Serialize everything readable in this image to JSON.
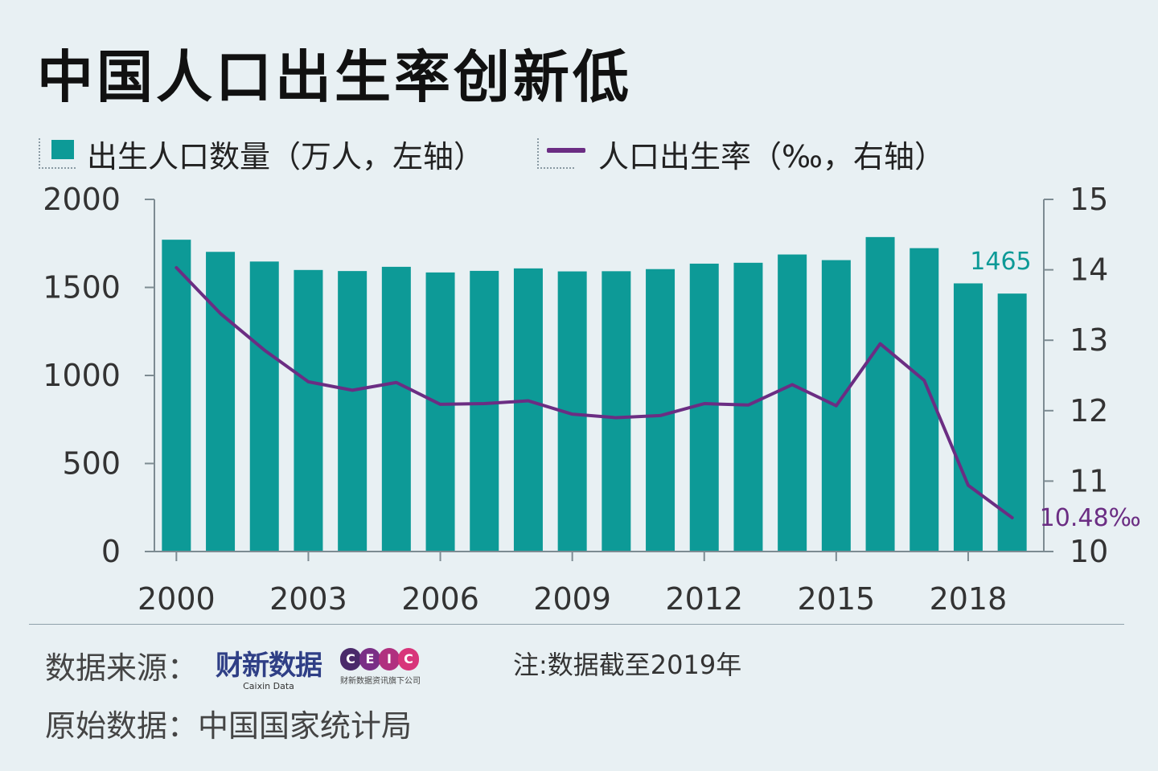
{
  "title": "中国人口出生率创新低",
  "legend": {
    "births_label": "出生人口数量（万人，左轴）",
    "rate_label": "人口出生率（‰，右轴）"
  },
  "colors": {
    "bar": "#0d9a97",
    "line": "#6b2d83",
    "axis": "#7d8b92",
    "tick_text": "#333333"
  },
  "chart_data": {
    "type": "bar+line",
    "x": [
      2000,
      2001,
      2002,
      2003,
      2004,
      2005,
      2006,
      2007,
      2008,
      2009,
      2010,
      2011,
      2012,
      2013,
      2014,
      2015,
      2016,
      2017,
      2018,
      2019
    ],
    "x_tick_labels": [
      "2000",
      "2003",
      "2006",
      "2009",
      "2012",
      "2015",
      "2018"
    ],
    "series": [
      {
        "name": "出生人口数量（万人，左轴）",
        "type": "bar",
        "axis": "left",
        "values": [
          1771,
          1702,
          1647,
          1599,
          1593,
          1617,
          1585,
          1594,
          1608,
          1591,
          1592,
          1604,
          1635,
          1640,
          1687,
          1655,
          1786,
          1723,
          1523,
          1465
        ]
      },
      {
        "name": "人口出生率（‰，右轴）",
        "type": "line",
        "axis": "right",
        "values": [
          14.03,
          13.38,
          12.86,
          12.41,
          12.29,
          12.4,
          12.09,
          12.1,
          12.14,
          11.95,
          11.9,
          11.93,
          12.1,
          12.08,
          12.37,
          12.07,
          12.95,
          12.43,
          10.94,
          10.48
        ]
      }
    ],
    "left_axis": {
      "ylim": [
        0,
        2000
      ],
      "ticks": [
        "0",
        "500",
        "1000",
        "1500",
        "2000"
      ]
    },
    "right_axis": {
      "ylim": [
        10,
        15
      ],
      "ticks": [
        "10",
        "11",
        "12",
        "13",
        "14",
        "15"
      ]
    },
    "annotations": {
      "last_bar_label": "1465",
      "last_rate_label": "10.48‰"
    }
  },
  "footer": {
    "source_label": "数据来源：",
    "caixin_cn": "财新数据",
    "caixin_en": "Caixin Data",
    "ceic_letters": [
      "C",
      "E",
      "I",
      "C"
    ],
    "ceic_colors": [
      "#4a2a6a",
      "#7a2f86",
      "#b0307f",
      "#d8357a"
    ],
    "ceic_sub": "财新数据资讯旗下公司",
    "note": "注:数据截至2019年",
    "origin": "原始数据：中国国家统计局"
  }
}
